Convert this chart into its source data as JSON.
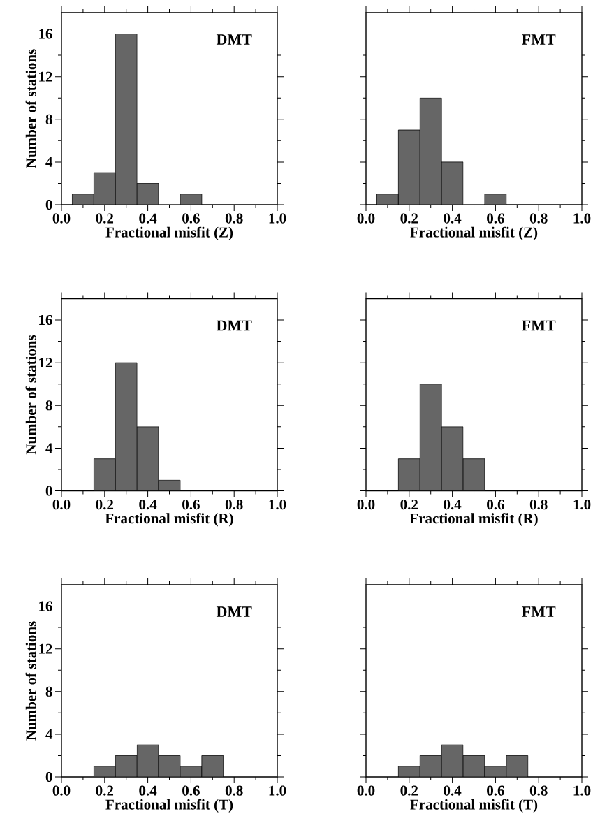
{
  "chart_data": [
    {
      "type": "histogram",
      "bins": [
        0.05,
        0.15,
        0.25,
        0.35,
        0.45,
        0.55,
        0.65
      ],
      "values": [
        1,
        3,
        16,
        2,
        0,
        1
      ],
      "color": "#666666",
      "xlabel": "Fractional misfit (Z)",
      "ylabel": "Number of stations",
      "annotations": [
        "DMT"
      ],
      "xlim": [
        0,
        1
      ],
      "ylim": [
        0,
        18
      ],
      "xticks": [
        {
          "value": 0,
          "label": "0.0"
        },
        {
          "value": 0.2,
          "label": "0.2"
        },
        {
          "value": 0.4,
          "label": "0.4"
        },
        {
          "value": 0.6,
          "label": "0.6"
        },
        {
          "value": 0.8,
          "label": "0.8"
        },
        {
          "value": 1,
          "label": "1.0"
        }
      ],
      "yticks": [
        0,
        4,
        8,
        12,
        16
      ]
    },
    {
      "type": "histogram",
      "bins": [
        0.05,
        0.15,
        0.25,
        0.35,
        0.45,
        0.55,
        0.65
      ],
      "values": [
        1,
        7,
        10,
        4,
        0,
        1
      ],
      "color": "#666666",
      "xlabel": "Fractional misfit (Z)",
      "annotations": [
        "FMT"
      ],
      "xlim": [
        0,
        1
      ],
      "ylim": [
        0,
        18
      ],
      "xticks": [
        {
          "value": 0,
          "label": "0.0"
        },
        {
          "value": 0.2,
          "label": "0.2"
        },
        {
          "value": 0.4,
          "label": "0.4"
        },
        {
          "value": 0.6,
          "label": "0.6"
        },
        {
          "value": 0.8,
          "label": "0.8"
        },
        {
          "value": 1,
          "label": "1.0"
        }
      ],
      "yticks": [
        0,
        4,
        8,
        12,
        16
      ],
      "tick_labels": "x"
    },
    {
      "type": "histogram",
      "bins": [
        0.15,
        0.25,
        0.35,
        0.45,
        0.55
      ],
      "values": [
        3,
        12,
        6,
        1
      ],
      "color": "#666666",
      "xlabel": "Fractional misfit (R)",
      "ylabel": "Number of stations",
      "annotations": [
        "DMT"
      ],
      "xlim": [
        0,
        1
      ],
      "ylim": [
        0,
        18
      ],
      "xticks": [
        {
          "value": 0,
          "label": "0.0"
        },
        {
          "value": 0.2,
          "label": "0.2"
        },
        {
          "value": 0.4,
          "label": "0.4"
        },
        {
          "value": 0.6,
          "label": "0.6"
        },
        {
          "value": 0.8,
          "label": "0.8"
        },
        {
          "value": 1,
          "label": "1.0"
        }
      ],
      "yticks": [
        0,
        4,
        8,
        12,
        16
      ]
    },
    {
      "type": "histogram",
      "bins": [
        0.15,
        0.25,
        0.35,
        0.45,
        0.55
      ],
      "values": [
        3,
        10,
        6,
        3
      ],
      "color": "#666666",
      "xlabel": "Fractional misfit (R)",
      "annotations": [
        "FMT"
      ],
      "xlim": [
        0,
        1
      ],
      "ylim": [
        0,
        18
      ],
      "xticks": [
        {
          "value": 0,
          "label": "0.0"
        },
        {
          "value": 0.2,
          "label": "0.2"
        },
        {
          "value": 0.4,
          "label": "0.4"
        },
        {
          "value": 0.6,
          "label": "0.6"
        },
        {
          "value": 0.8,
          "label": "0.8"
        },
        {
          "value": 1,
          "label": "1.0"
        }
      ],
      "yticks": [
        0,
        4,
        8,
        12,
        16
      ],
      "tick_labels": "x"
    },
    {
      "type": "histogram",
      "bins": [
        0.15,
        0.25,
        0.35,
        0.45,
        0.55,
        0.65,
        0.75
      ],
      "values": [
        1,
        2,
        3,
        2,
        1,
        2
      ],
      "color": "#666666",
      "xlabel": "Fractional misfit (T)",
      "ylabel": "Number of stations",
      "annotations": [
        "DMT"
      ],
      "xlim": [
        0,
        1
      ],
      "ylim": [
        0,
        18
      ],
      "xticks": [
        {
          "value": 0,
          "label": "0.0"
        },
        {
          "value": 0.2,
          "label": "0.2"
        },
        {
          "value": 0.4,
          "label": "0.4"
        },
        {
          "value": 0.6,
          "label": "0.6"
        },
        {
          "value": 0.8,
          "label": "0.8"
        },
        {
          "value": 1,
          "label": "1.0"
        }
      ],
      "yticks": [
        0,
        4,
        8,
        12,
        16
      ]
    },
    {
      "type": "histogram",
      "bins": [
        0.15,
        0.25,
        0.35,
        0.45,
        0.55,
        0.65,
        0.75
      ],
      "values": [
        1,
        2,
        3,
        2,
        1,
        2
      ],
      "color": "#666666",
      "xlabel": "Fractional misfit (T)",
      "annotations": [
        "FMT"
      ],
      "xlim": [
        0,
        1
      ],
      "ylim": [
        0,
        18
      ],
      "xticks": [
        {
          "value": 0,
          "label": "0.0"
        },
        {
          "value": 0.2,
          "label": "0.2"
        },
        {
          "value": 0.4,
          "label": "0.4"
        },
        {
          "value": 0.6,
          "label": "0.6"
        },
        {
          "value": 0.8,
          "label": "0.8"
        },
        {
          "value": 1,
          "label": "1.0"
        }
      ],
      "yticks": [
        0,
        4,
        8,
        12,
        16
      ],
      "tick_labels": "x"
    }
  ]
}
